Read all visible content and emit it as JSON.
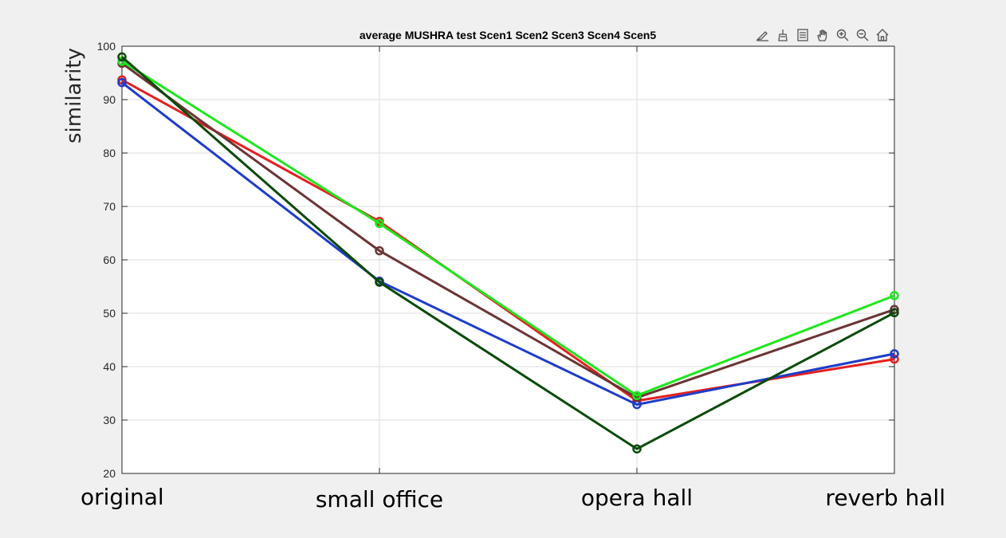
{
  "toolbar": {
    "icons": [
      "brush-icon",
      "data-tips-icon",
      "legend-icon",
      "pan-hand-icon",
      "zoom-in-icon",
      "zoom-out-icon",
      "home-icon"
    ]
  },
  "chart_data": {
    "type": "line",
    "title": "average MUSHRA test Scen1 Scen2 Scen3 Scen4 Scen5",
    "xlabel": "",
    "ylabel": "similarity",
    "categories": [
      "original",
      "small office",
      "opera hall",
      "reverb hall"
    ],
    "ylim": [
      20,
      100
    ],
    "yticks": [
      20,
      30,
      40,
      50,
      60,
      70,
      80,
      90,
      100
    ],
    "grid": true,
    "legend": "none",
    "marker": "circle",
    "series": [
      {
        "color": "#e32020",
        "values": [
          93.7,
          67.2,
          33.6,
          41.4
        ]
      },
      {
        "color": "#1e3cc8",
        "values": [
          93.2,
          56.0,
          32.9,
          42.4
        ]
      },
      {
        "color": "#6b3434",
        "values": [
          96.8,
          61.7,
          34.2,
          50.7
        ]
      },
      {
        "color": "#1ee61e",
        "values": [
          97.2,
          66.8,
          34.6,
          53.3
        ]
      },
      {
        "color": "#0a4a0a",
        "values": [
          98.0,
          55.8,
          24.6,
          50.1
        ]
      }
    ]
  }
}
